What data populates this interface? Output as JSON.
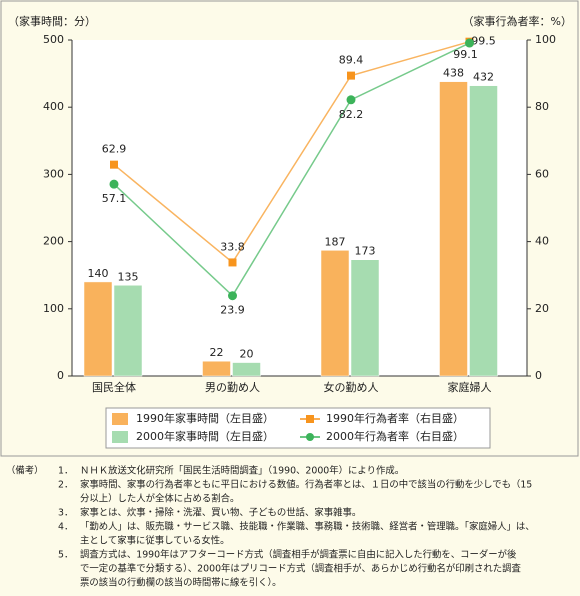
{
  "chart_data": {
    "type": "bar",
    "y_label": "（家事時間：分）",
    "y2_label": "（家事行為者率：%）",
    "categories": [
      "国民全体",
      "男の勤め人",
      "女の勤め人",
      "家庭婦人"
    ],
    "ylim": [
      0,
      500
    ],
    "yticks": [
      0,
      100,
      200,
      300,
      400,
      500
    ],
    "y2lim": [
      0,
      100
    ],
    "y2ticks": [
      0,
      20,
      40,
      60,
      80,
      100
    ],
    "series": [
      {
        "name": "1990年家事時間（左目盛）",
        "type": "bar",
        "color": "#f9b25c",
        "values": [
          140,
          22,
          187,
          438
        ]
      },
      {
        "name": "2000年家事時間（左目盛）",
        "type": "bar",
        "color": "#a6dcb0",
        "values": [
          135,
          20,
          173,
          432
        ]
      },
      {
        "name": "1990年行為者率（右目盛）",
        "type": "line",
        "axis": "y2",
        "marker": "square",
        "color": "#f7941d",
        "values": [
          62.9,
          33.8,
          89.4,
          99.5
        ]
      },
      {
        "name": "2000年行為者率（右目盛）",
        "type": "line",
        "axis": "y2",
        "marker": "circle",
        "color": "#3cb35a",
        "values": [
          57.1,
          23.9,
          82.2,
          99.1
        ]
      }
    ]
  },
  "notes": {
    "label": "（備考）",
    "items": [
      {
        "num": "1．",
        "lines": [
          "ＮＨＫ放送文化研究所「国民生活時間調査」（1990、2000年）により作成。"
        ]
      },
      {
        "num": "2．",
        "lines": [
          "家事時間、家事の行為者率ともに平日における数値。行為者率とは、１日の中で該当の行動を少しでも（15",
          "分以上）した人が全体に占める割合。"
        ]
      },
      {
        "num": "3．",
        "lines": [
          "家事とは、炊事・掃除・洗濯、買い物、子どもの世話、家事雑事。"
        ]
      },
      {
        "num": "4．",
        "lines": [
          "「勤め人」は、販売職・サービス職、技能職・作業職、事務職・技術職、経営者・管理職。「家庭婦人」は、",
          "主として家事に従事している女性。"
        ]
      },
      {
        "num": "5．",
        "lines": [
          "調査方式は、1990年はアフターコード方式（調査相手が調査票に自由に記入した行動を、コーダーが後",
          "で一定の基準で分類する）、2000年はプリコード方式（調査相手が、あらかじめ行動名が印刷された調査",
          "票の該当の行動欄の該当の時間帯に線を引く）。"
        ]
      }
    ]
  }
}
